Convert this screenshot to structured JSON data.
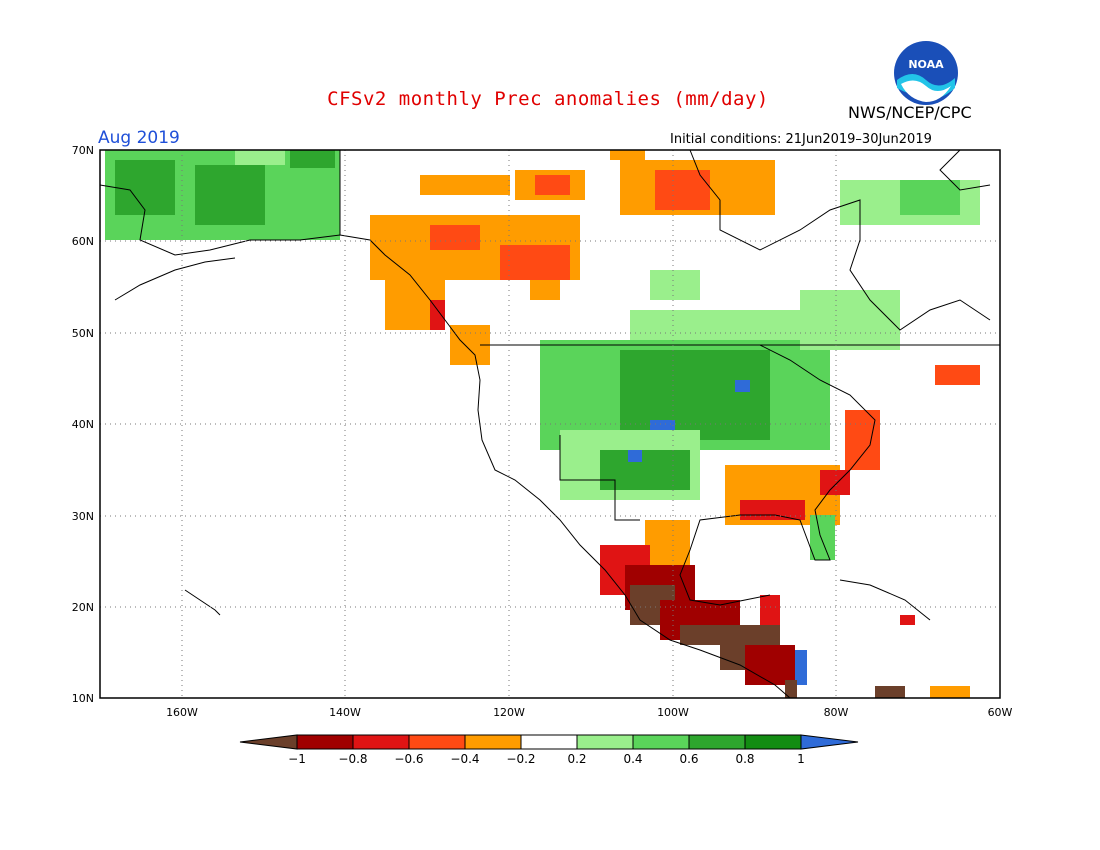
{
  "header": {
    "title": "CFSv2 monthly Prec anomalies (mm/day)",
    "agency": "NWS/NCEP/CPC",
    "month": "Aug 2019",
    "initial_conditions": "Initial conditions: 21Jun2019–30Jun2019"
  },
  "logo": {
    "icon": "noaa-logo-icon",
    "text": "NOAA"
  },
  "map": {
    "projection": "equirectangular",
    "lon_range": [
      -170,
      -60
    ],
    "lat_range": [
      10,
      70
    ],
    "grid": "dotted",
    "lat_labels": [
      "70N",
      "60N",
      "50N",
      "40N",
      "30N",
      "20N",
      "10N"
    ],
    "lon_labels": [
      "160W",
      "140W",
      "120W",
      "100W",
      "80W",
      "60W"
    ]
  },
  "colorbar": {
    "labels": [
      "−1",
      "−0.8",
      "−0.6",
      "−0.4",
      "−0.2",
      "0.2",
      "0.4",
      "0.6",
      "0.8",
      "1"
    ],
    "colors": {
      "below_min": "#6b3f2a",
      "bins": [
        "#a00000",
        "#e01414",
        "#ff4a14",
        "#ff9c00",
        "#ffffff",
        "#9aef8c",
        "#5ad45a",
        "#2ea62e",
        "#128c12"
      ],
      "above_max": "#2f6bd8"
    }
  },
  "colors": {
    "title": "#e00000",
    "month": "#1f4fd8",
    "coast": "#000000"
  }
}
